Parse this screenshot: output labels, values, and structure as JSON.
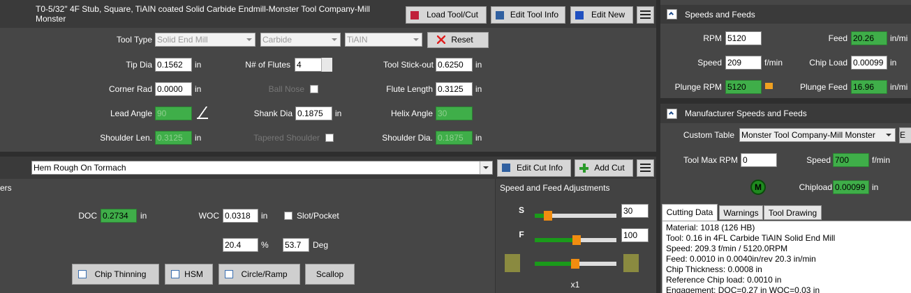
{
  "tool_header": {
    "title": "T0-5/32\" 4F Stub, Square, TiAIN coated Solid Carbide Endmill-Monster Tool Company-Mill Monster",
    "buttons": [
      "Load Tool/Cut",
      "Edit Tool Info",
      "Edit New"
    ]
  },
  "tool": {
    "type_label": "Tool Type",
    "selects": [
      "Solid End Mill",
      "Carbide",
      "TiAIN"
    ],
    "reset": "Reset",
    "tip_dia": {
      "label": "Tip Dia",
      "value": "0.1562",
      "unit": "in"
    },
    "flutes": {
      "label": "N# of Flutes",
      "value": "4"
    },
    "stick_out": {
      "label": "Tool Stick-out",
      "value": "0.6250",
      "unit": "in"
    },
    "corner_rad": {
      "label": "Corner Rad",
      "value": "0.0000",
      "unit": "in"
    },
    "ball_nose": {
      "label": "Ball Nose"
    },
    "flute_length": {
      "label": "Flute Length",
      "value": "0.3125",
      "unit": "in"
    },
    "lead_angle": {
      "label": "Lead Angle",
      "value": "90"
    },
    "shank_dia": {
      "label": "Shank Dia",
      "value": "0.1875",
      "unit": "in"
    },
    "helix_angle": {
      "label": "Helix Angle",
      "value": "30"
    },
    "shoulder_len": {
      "label": "Shoulder Len.",
      "value": "0.3125",
      "unit": "in"
    },
    "tapered_shoulder": {
      "label": "Tapered Shoulder"
    },
    "shoulder_dia": {
      "label": "Shoulder Dia.",
      "value": "0.1875",
      "unit": "in"
    }
  },
  "cut": {
    "name": "Hem Rough On Tormach",
    "buttons": [
      "Edit Cut Info",
      "Add Cut"
    ],
    "section": "ers",
    "doc": {
      "label": "DOC",
      "value": "0.2734",
      "unit": "in"
    },
    "woc": {
      "label": "WOC",
      "value": "0.0318",
      "unit": "in"
    },
    "slot": "Slot/Pocket",
    "percent": {
      "value": "20.4",
      "unit": "%"
    },
    "angle": {
      "value": "53.7",
      "unit": "Deg"
    },
    "options": [
      "Chip Thinning",
      "HSM",
      "Circle/Ramp",
      "Scallop"
    ]
  },
  "adjust": {
    "title": "Speed and Feed Adjustments",
    "s": {
      "label": "S",
      "value": "30"
    },
    "f": {
      "label": "F",
      "value": "100"
    },
    "multiplier": "x1"
  },
  "speeds": {
    "title": "Speeds and Feeds",
    "rpm": {
      "label": "RPM",
      "value": "5120"
    },
    "feed": {
      "label": "Feed",
      "value": "20.26",
      "unit": "in/mi"
    },
    "speed": {
      "label": "Speed",
      "value": "209",
      "unit": "f/min"
    },
    "chip_load": {
      "label": "Chip Load",
      "value": "0.00099",
      "unit": "in"
    },
    "plunge_rpm": {
      "label": "Plunge RPM",
      "value": "5120"
    },
    "plunge_feed": {
      "label": "Plunge Feed",
      "value": "16.96",
      "unit": "in/mi"
    }
  },
  "manufacturer": {
    "title": "Manufacturer Speeds and Feeds",
    "table": {
      "label": "Custom Table",
      "value": "Monster Tool Company-Mill Monster"
    },
    "button": "E",
    "max_rpm": {
      "label": "Tool Max RPM",
      "value": "0"
    },
    "speed": {
      "label": "Speed",
      "value": "700",
      "unit": "f/min"
    },
    "icon": "M",
    "chipload": {
      "label": "Chipload",
      "value": "0.00099",
      "unit": "in"
    }
  },
  "cutting_data": {
    "tabs": [
      "Cutting Data",
      "Warnings",
      "Tool Drawing"
    ],
    "lines": [
      "Material: 1018 (126 HB)",
      "Tool: 0.16 in 4FL Carbide TiAIN Solid End Mill",
      "Speed: 209.3 f/min / 5120.0RPM",
      "Feed: 0.0010 in 0.0040in/rev 20.3 in/min",
      "Chip Thickness: 0.0008 in",
      "Reference Chip load: 0.0010 in",
      "Engagement: DOC=0.27 in WOC=0.03 in"
    ]
  }
}
